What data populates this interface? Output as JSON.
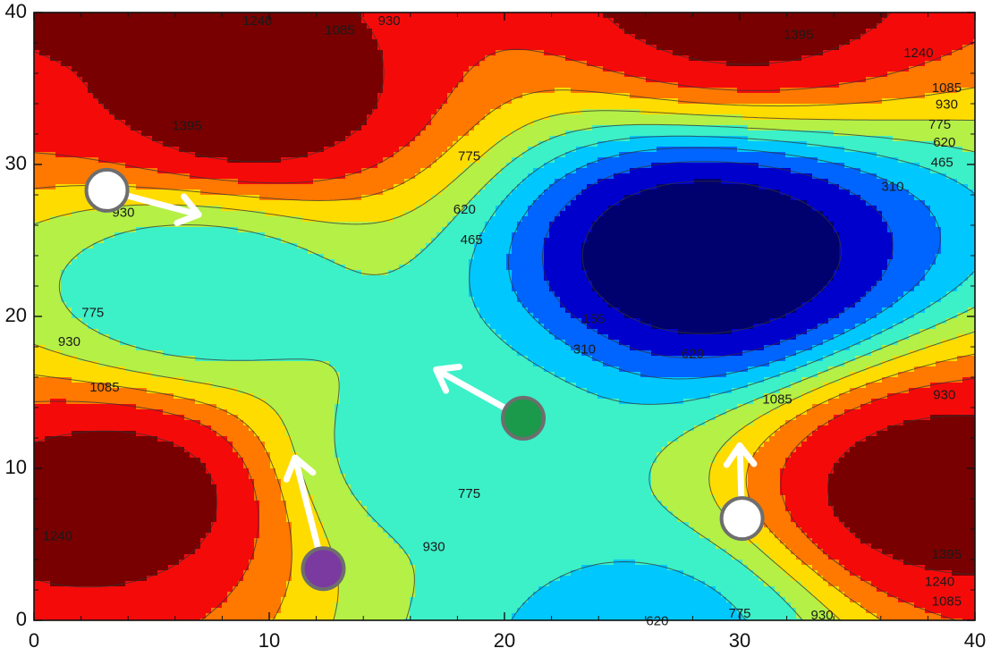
{
  "chart_data": {
    "type": "heatmap",
    "title": "",
    "xlabel": "",
    "ylabel": "",
    "xlim": [
      0,
      40
    ],
    "ylim": [
      0,
      40
    ],
    "x_ticks": [
      "0",
      "10",
      "20",
      "30",
      "40"
    ],
    "y_ticks": [
      "0",
      "10",
      "20",
      "30",
      "40"
    ],
    "contour_levels": [
      155,
      310,
      465,
      620,
      775,
      930,
      1085,
      1240,
      1395
    ],
    "level_colors": [
      "#00006e",
      "#0000cd",
      "#0064ff",
      "#00c8ff",
      "#3cf0c8",
      "#b4f046",
      "#ffdc00",
      "#ff7800",
      "#f50a0a",
      "#780000"
    ],
    "field_peaks": [
      {
        "x": 9,
        "y": 34,
        "value": 1500
      },
      {
        "x": 4,
        "y": 8.5,
        "value": 1480
      },
      {
        "x": 38,
        "y": 8.5,
        "value": 1480
      },
      {
        "x": 30,
        "y": 41,
        "value": 1470
      },
      {
        "x": 1.5,
        "y": 40.5,
        "value": 1400
      },
      {
        "x": 28.5,
        "y": 24,
        "value": 0
      },
      {
        "x": 7,
        "y": 22,
        "value": 650
      },
      {
        "x": 17,
        "y": 11,
        "value": 700
      },
      {
        "x": 26,
        "y": -1,
        "value": 560
      }
    ],
    "contour_labels": [
      {
        "text": "1240",
        "x": 9.5,
        "y": 39.4
      },
      {
        "text": "1085",
        "x": 13.0,
        "y": 38.8
      },
      {
        "text": "930",
        "x": 15.1,
        "y": 39.4
      },
      {
        "text": "1395",
        "x": 6.5,
        "y": 32.5
      },
      {
        "text": "930",
        "x": 3.8,
        "y": 26.8
      },
      {
        "text": "775",
        "x": 2.5,
        "y": 20.2
      },
      {
        "text": "930",
        "x": 1.5,
        "y": 18.3
      },
      {
        "text": "1085",
        "x": 3.0,
        "y": 15.3
      },
      {
        "text": "1240",
        "x": 1.0,
        "y": 5.5
      },
      {
        "text": "775",
        "x": 18.5,
        "y": 30.5
      },
      {
        "text": "620",
        "x": 18.3,
        "y": 27.0
      },
      {
        "text": "465",
        "x": 18.6,
        "y": 25.0
      },
      {
        "text": "155",
        "x": 23.8,
        "y": 19.8
      },
      {
        "text": "310",
        "x": 23.4,
        "y": 17.8
      },
      {
        "text": "620",
        "x": 28.0,
        "y": 17.5
      },
      {
        "text": "1085",
        "x": 31.6,
        "y": 14.5
      },
      {
        "text": "930",
        "x": 38.7,
        "y": 14.8
      },
      {
        "text": "775",
        "x": 18.5,
        "y": 8.3
      },
      {
        "text": "930",
        "x": 17.0,
        "y": 4.8
      },
      {
        "text": "620",
        "x": 26.5,
        "y": -0.1
      },
      {
        "text": "775",
        "x": 30.0,
        "y": 0.4
      },
      {
        "text": "930",
        "x": 33.5,
        "y": 0.3
      },
      {
        "text": "1085",
        "x": 38.8,
        "y": 1.2
      },
      {
        "text": "1240",
        "x": 38.5,
        "y": 2.5
      },
      {
        "text": "1395",
        "x": 38.8,
        "y": 4.3
      },
      {
        "text": "1395",
        "x": 32.5,
        "y": 38.5
      },
      {
        "text": "1240",
        "x": 37.6,
        "y": 37.3
      },
      {
        "text": "1085",
        "x": 38.8,
        "y": 35.0
      },
      {
        "text": "930",
        "x": 38.8,
        "y": 33.9
      },
      {
        "text": "775",
        "x": 38.5,
        "y": 32.6
      },
      {
        "text": "620",
        "x": 38.7,
        "y": 31.4
      },
      {
        "text": "465",
        "x": 38.6,
        "y": 30.1
      },
      {
        "text": "310",
        "x": 36.5,
        "y": 28.5
      }
    ],
    "markers": [
      {
        "color": "#ffffff",
        "x": 3.1,
        "y": 28.3,
        "arrow_to": {
          "x": 7.0,
          "y": 26.7
        }
      },
      {
        "color": "#1a9a4a",
        "x": 20.8,
        "y": 13.3,
        "arrow_to": {
          "x": 17.1,
          "y": 16.5
        }
      },
      {
        "color": "#7b3aa0",
        "x": 12.3,
        "y": 3.4,
        "arrow_to": {
          "x": 11.1,
          "y": 10.7
        }
      },
      {
        "color": "#ffffff",
        "x": 30.1,
        "y": 6.7,
        "arrow_to": {
          "x": 30.0,
          "y": 11.5
        }
      }
    ]
  }
}
